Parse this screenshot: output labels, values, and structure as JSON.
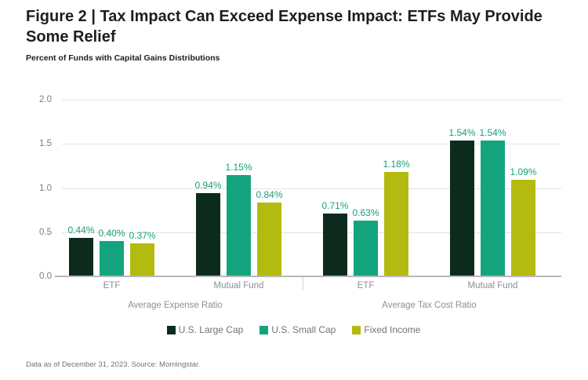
{
  "header": {
    "title": "Figure 2 | Tax Impact Can Exceed Expense Impact: ETFs May Provide Some Relief",
    "subtitle": "Percent of Funds with Capital Gains Distributions"
  },
  "chart_data": {
    "type": "bar",
    "title": "Figure 2 | Tax Impact Can Exceed Expense Impact: ETFs May Provide Some Relief",
    "ylabel": "Percent of Funds with Capital Gains Distributions",
    "ylim": [
      0,
      2.0
    ],
    "yticks": [
      "2.0",
      "1.5",
      "1.0",
      "0.5",
      "0.0"
    ],
    "grid": true,
    "legend_position": "bottom",
    "value_label_color": "#17a07b",
    "series": [
      {
        "name": "U.S. Large Cap",
        "color": "#0d2b1d"
      },
      {
        "name": "U.S. Small Cap",
        "color": "#13a47e"
      },
      {
        "name": "Fixed Income",
        "color": "#b3ba10"
      }
    ],
    "sections": [
      {
        "label": "Average Expense Ratio",
        "groups": [
          {
            "category": "ETF",
            "values": [
              0.44,
              0.4,
              0.37
            ],
            "labels": [
              "0.44%",
              "0.40%",
              "0.37%"
            ]
          },
          {
            "category": "Mutual Fund",
            "values": [
              0.94,
              1.15,
              0.84
            ],
            "labels": [
              "0.94%",
              "1.15%",
              "0.84%"
            ]
          }
        ]
      },
      {
        "label": "Average Tax Cost Ratio",
        "groups": [
          {
            "category": "ETF",
            "values": [
              0.71,
              0.63,
              1.18
            ],
            "labels": [
              "0.71%",
              "0.63%",
              "1.18%"
            ]
          },
          {
            "category": "Mutual Fund",
            "values": [
              1.54,
              1.54,
              1.09
            ],
            "labels": [
              "1.54%",
              "1.54%",
              "1.09%"
            ]
          }
        ]
      }
    ]
  },
  "footer": {
    "note": "Data as of December 31, 2023. Source: Morningstar."
  }
}
